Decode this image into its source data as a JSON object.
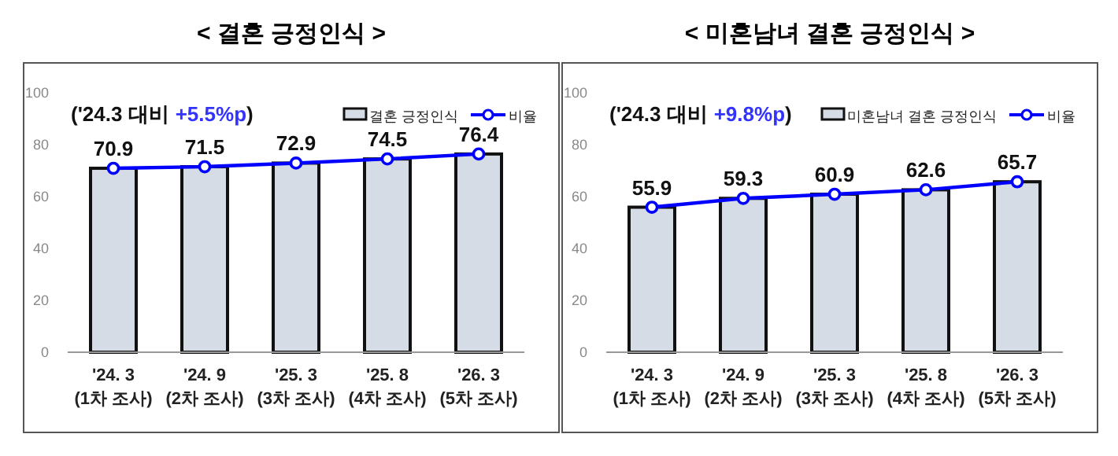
{
  "chart_data": [
    {
      "type": "bar",
      "title": "< 결혼 긍정인식 >",
      "annotations": [
        "('24.3 대비",
        "+5.5%p",
        ")"
      ],
      "categories": [
        "'24. 3\n(1차 조사)",
        "'24. 9\n(2차 조사)",
        "'25. 3\n(3차 조사)",
        "'25. 8\n(4차 조사)",
        "'26. 3\n(5차 조사)"
      ],
      "series": [
        {
          "name": "결혼 긍정인식",
          "color": "#d6dce5",
          "values": [
            70.9,
            71.5,
            72.9,
            74.5,
            76.4
          ]
        },
        {
          "name": "비율",
          "type": "line",
          "color": "#0000ff",
          "values": [
            70.9,
            71.5,
            72.9,
            74.5,
            76.4
          ],
          "value_labels": [
            "70.9",
            "71.5",
            "72.9",
            "74.5",
            "76.4"
          ]
        }
      ],
      "ylim": [
        0,
        100
      ],
      "yticks": [
        0,
        20,
        40,
        60,
        80,
        100
      ],
      "legend": "top right",
      "marker": "circle",
      "grid": false
    },
    {
      "type": "bar",
      "title": "< 미혼남녀 결혼 긍정인식 >",
      "annotations": [
        "('24.3 대비",
        "+9.8%p",
        ")"
      ],
      "categories": [
        "'24. 3\n(1차 조사)",
        "'24. 9\n(2차 조사)",
        "'25. 3\n(3차 조사)",
        "'25. 8\n(4차 조사)",
        "'26. 3\n(5차 조사)"
      ],
      "series": [
        {
          "name": "미혼남녀 결혼 긍정인식",
          "color": "#d6dce5",
          "values": [
            55.9,
            59.3,
            60.9,
            62.6,
            65.7
          ]
        },
        {
          "name": "비율",
          "type": "line",
          "color": "#0000ff",
          "values": [
            55.9,
            59.3,
            60.9,
            62.6,
            65.7
          ],
          "value_labels": [
            "55.9",
            "59.3",
            "60.9",
            "62.6",
            "65.7"
          ]
        }
      ],
      "ylim": [
        0,
        100
      ],
      "yticks": [
        0,
        20,
        40,
        60,
        80,
        100
      ],
      "legend": "top right",
      "marker": "circle",
      "grid": false
    }
  ]
}
